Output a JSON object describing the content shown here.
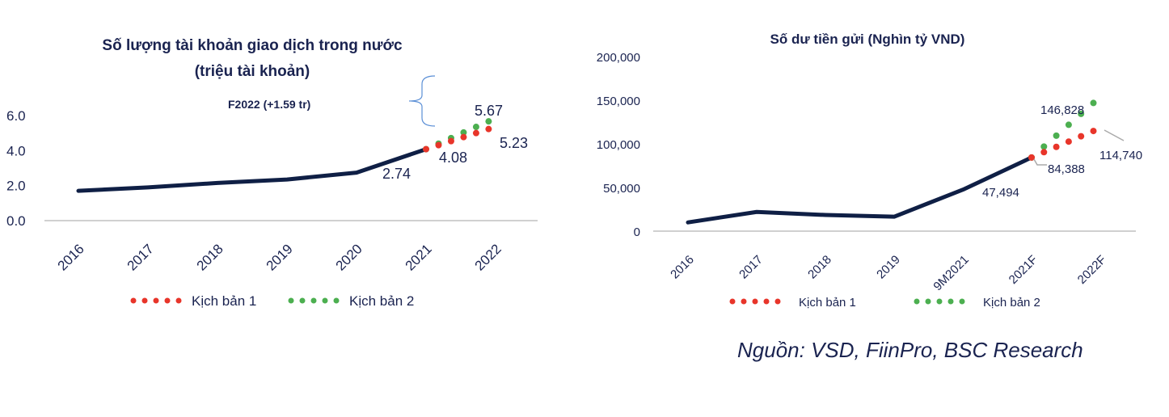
{
  "chart_data": [
    {
      "type": "line",
      "title": "Số lượng tài khoản giao dịch trong nước",
      "subtitle": "(triệu tài khoản)",
      "categories": [
        "2016",
        "2017",
        "2018",
        "2019",
        "2020",
        "2021",
        "2022"
      ],
      "yticks": [
        "0.0",
        "2.0",
        "4.0",
        "6.0"
      ],
      "ylim": [
        0,
        8
      ],
      "actual": {
        "x": [
          "2016",
          "2017",
          "2018",
          "2019",
          "2020",
          "2021"
        ],
        "values": [
          1.7,
          1.9,
          2.15,
          2.35,
          2.74,
          4.08
        ]
      },
      "series": [
        {
          "name": "Kịch bản 1",
          "color": "#e8352a",
          "start": 4.08,
          "end": 5.23
        },
        {
          "name": "Kịch bản 2",
          "color": "#4caf50",
          "start": 4.08,
          "end": 5.67
        }
      ],
      "labels": [
        "2.74",
        "4.08",
        "5.67",
        "5.23"
      ],
      "annotation": "F2022 (+1.59 tr)",
      "line_color": "#0f1f45"
    },
    {
      "type": "line",
      "title": "Số dư tiền gửi (Nghìn tỷ VND)",
      "categories": [
        "2016",
        "2017",
        "2018",
        "2019",
        "9M2021",
        "2021F",
        "2022F"
      ],
      "yticks": [
        "0",
        "50,000",
        "100,000",
        "150,000",
        "200,000"
      ],
      "ylim": [
        0,
        200000
      ],
      "actual": {
        "x": [
          "2016",
          "2017",
          "2018",
          "2019",
          "9M2021",
          "2021F"
        ],
        "values": [
          10000,
          22000,
          18500,
          16500,
          47494,
          84388
        ]
      },
      "series": [
        {
          "name": "Kịch bản 1",
          "color": "#e8352a",
          "start": 84388,
          "end": 114740
        },
        {
          "name": "Kịch bản 2",
          "color": "#4caf50",
          "start": 84388,
          "end": 146828
        }
      ],
      "labels": [
        "47,494",
        "84,388",
        "146,828",
        "114,740"
      ],
      "line_color": "#0f1f45"
    }
  ],
  "source": "Nguồn: VSD, FiinPro, BSC Research"
}
